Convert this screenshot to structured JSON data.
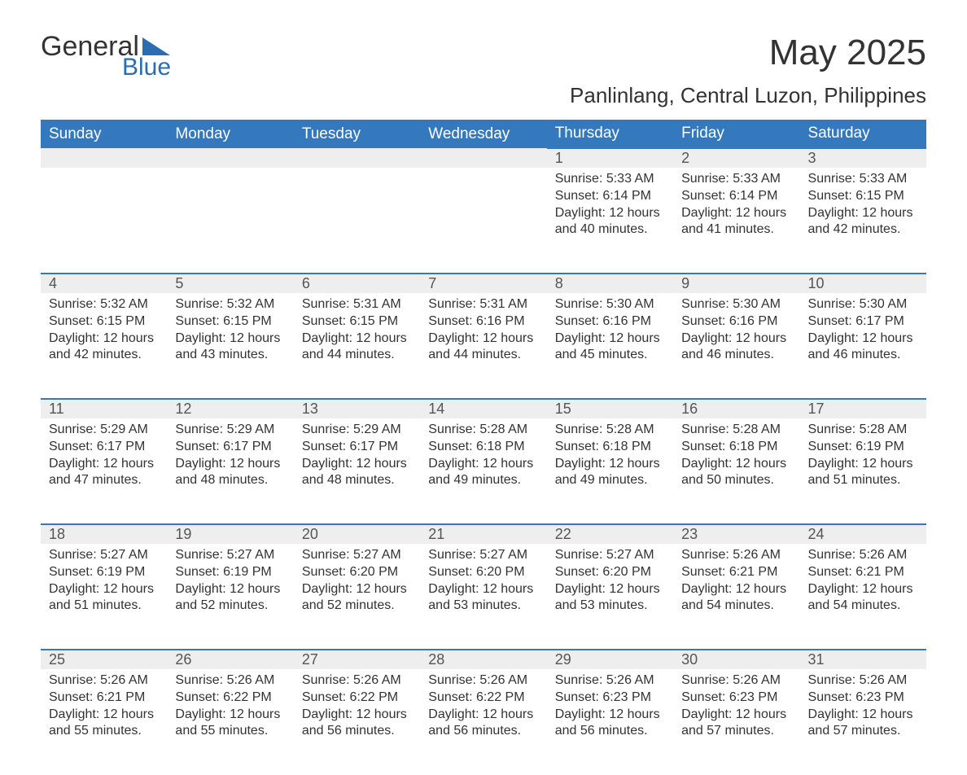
{
  "logo": {
    "word1": "General",
    "word2": "Blue",
    "accent_color": "#2a6db0"
  },
  "title": "May 2025",
  "location": "Panlinlang, Central Luzon, Philippines",
  "header_bg": "#3478bd",
  "header_fg": "#ffffff",
  "daynum_bg": "#eeeeee",
  "border_color": "#3478bd",
  "text_color": "#333333",
  "weekdays": [
    "Sunday",
    "Monday",
    "Tuesday",
    "Wednesday",
    "Thursday",
    "Friday",
    "Saturday"
  ],
  "first_weekday_index": 4,
  "days_in_month": 31,
  "days": {
    "1": {
      "sunrise": "5:33 AM",
      "sunset": "6:14 PM",
      "daylight": "12 hours and 40 minutes."
    },
    "2": {
      "sunrise": "5:33 AM",
      "sunset": "6:14 PM",
      "daylight": "12 hours and 41 minutes."
    },
    "3": {
      "sunrise": "5:33 AM",
      "sunset": "6:15 PM",
      "daylight": "12 hours and 42 minutes."
    },
    "4": {
      "sunrise": "5:32 AM",
      "sunset": "6:15 PM",
      "daylight": "12 hours and 42 minutes."
    },
    "5": {
      "sunrise": "5:32 AM",
      "sunset": "6:15 PM",
      "daylight": "12 hours and 43 minutes."
    },
    "6": {
      "sunrise": "5:31 AM",
      "sunset": "6:15 PM",
      "daylight": "12 hours and 44 minutes."
    },
    "7": {
      "sunrise": "5:31 AM",
      "sunset": "6:16 PM",
      "daylight": "12 hours and 44 minutes."
    },
    "8": {
      "sunrise": "5:30 AM",
      "sunset": "6:16 PM",
      "daylight": "12 hours and 45 minutes."
    },
    "9": {
      "sunrise": "5:30 AM",
      "sunset": "6:16 PM",
      "daylight": "12 hours and 46 minutes."
    },
    "10": {
      "sunrise": "5:30 AM",
      "sunset": "6:17 PM",
      "daylight": "12 hours and 46 minutes."
    },
    "11": {
      "sunrise": "5:29 AM",
      "sunset": "6:17 PM",
      "daylight": "12 hours and 47 minutes."
    },
    "12": {
      "sunrise": "5:29 AM",
      "sunset": "6:17 PM",
      "daylight": "12 hours and 48 minutes."
    },
    "13": {
      "sunrise": "5:29 AM",
      "sunset": "6:17 PM",
      "daylight": "12 hours and 48 minutes."
    },
    "14": {
      "sunrise": "5:28 AM",
      "sunset": "6:18 PM",
      "daylight": "12 hours and 49 minutes."
    },
    "15": {
      "sunrise": "5:28 AM",
      "sunset": "6:18 PM",
      "daylight": "12 hours and 49 minutes."
    },
    "16": {
      "sunrise": "5:28 AM",
      "sunset": "6:18 PM",
      "daylight": "12 hours and 50 minutes."
    },
    "17": {
      "sunrise": "5:28 AM",
      "sunset": "6:19 PM",
      "daylight": "12 hours and 51 minutes."
    },
    "18": {
      "sunrise": "5:27 AM",
      "sunset": "6:19 PM",
      "daylight": "12 hours and 51 minutes."
    },
    "19": {
      "sunrise": "5:27 AM",
      "sunset": "6:19 PM",
      "daylight": "12 hours and 52 minutes."
    },
    "20": {
      "sunrise": "5:27 AM",
      "sunset": "6:20 PM",
      "daylight": "12 hours and 52 minutes."
    },
    "21": {
      "sunrise": "5:27 AM",
      "sunset": "6:20 PM",
      "daylight": "12 hours and 53 minutes."
    },
    "22": {
      "sunrise": "5:27 AM",
      "sunset": "6:20 PM",
      "daylight": "12 hours and 53 minutes."
    },
    "23": {
      "sunrise": "5:26 AM",
      "sunset": "6:21 PM",
      "daylight": "12 hours and 54 minutes."
    },
    "24": {
      "sunrise": "5:26 AM",
      "sunset": "6:21 PM",
      "daylight": "12 hours and 54 minutes."
    },
    "25": {
      "sunrise": "5:26 AM",
      "sunset": "6:21 PM",
      "daylight": "12 hours and 55 minutes."
    },
    "26": {
      "sunrise": "5:26 AM",
      "sunset": "6:22 PM",
      "daylight": "12 hours and 55 minutes."
    },
    "27": {
      "sunrise": "5:26 AM",
      "sunset": "6:22 PM",
      "daylight": "12 hours and 56 minutes."
    },
    "28": {
      "sunrise": "5:26 AM",
      "sunset": "6:22 PM",
      "daylight": "12 hours and 56 minutes."
    },
    "29": {
      "sunrise": "5:26 AM",
      "sunset": "6:23 PM",
      "daylight": "12 hours and 56 minutes."
    },
    "30": {
      "sunrise": "5:26 AM",
      "sunset": "6:23 PM",
      "daylight": "12 hours and 57 minutes."
    },
    "31": {
      "sunrise": "5:26 AM",
      "sunset": "6:23 PM",
      "daylight": "12 hours and 57 minutes."
    }
  },
  "labels": {
    "sunrise": "Sunrise:",
    "sunset": "Sunset:",
    "daylight": "Daylight:"
  }
}
